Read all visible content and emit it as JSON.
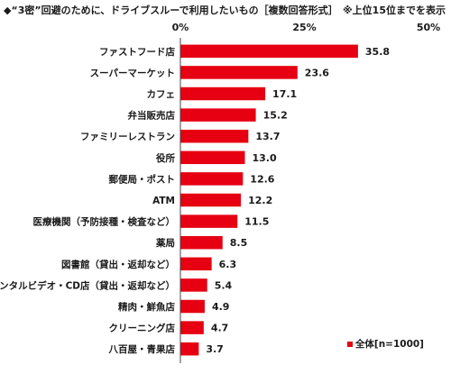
{
  "title": "◆“3密”回避のために、ドライブスルーで利用したいもの［複数回答形式］",
  "note": "※上位15位までを表示",
  "legend_label": "全体[n=1000]",
  "bar_color": "#e60012",
  "chart_data": {
    "type": "bar",
    "orientation": "horizontal",
    "categories": [
      "ファストフード店",
      "スーパーマーケット",
      "カフェ",
      "弁当販売店",
      "ファミリーレストラン",
      "役所",
      "郵便局・ポスト",
      "ATM",
      "医療機関（予防接種・検査など）",
      "薬局",
      "図書館（貸出・返却など）",
      "レンタルビデオ・CD店（貸出・返却など）",
      "精肉・鮮魚店",
      "クリーニング店",
      "八百屋・青果店"
    ],
    "series": [
      {
        "name": "全体[n=1000]",
        "values": [
          35.8,
          23.6,
          17.1,
          15.2,
          13.7,
          13.0,
          12.6,
          12.2,
          11.5,
          8.5,
          6.3,
          5.4,
          4.9,
          4.7,
          3.7
        ]
      }
    ],
    "value_labels": [
      "35.8",
      "23.6",
      "17.1",
      "15.2",
      "13.7",
      "13.0",
      "12.6",
      "12.2",
      "11.5",
      "8.5",
      "6.3",
      "5.4",
      "4.9",
      "4.7",
      "3.7"
    ],
    "xlim": [
      0,
      50
    ],
    "ticks": [
      "0%",
      "25%",
      "50%"
    ],
    "tick_values": [
      0,
      25,
      50
    ],
    "grid": false,
    "legend_position": "bottom-right"
  }
}
